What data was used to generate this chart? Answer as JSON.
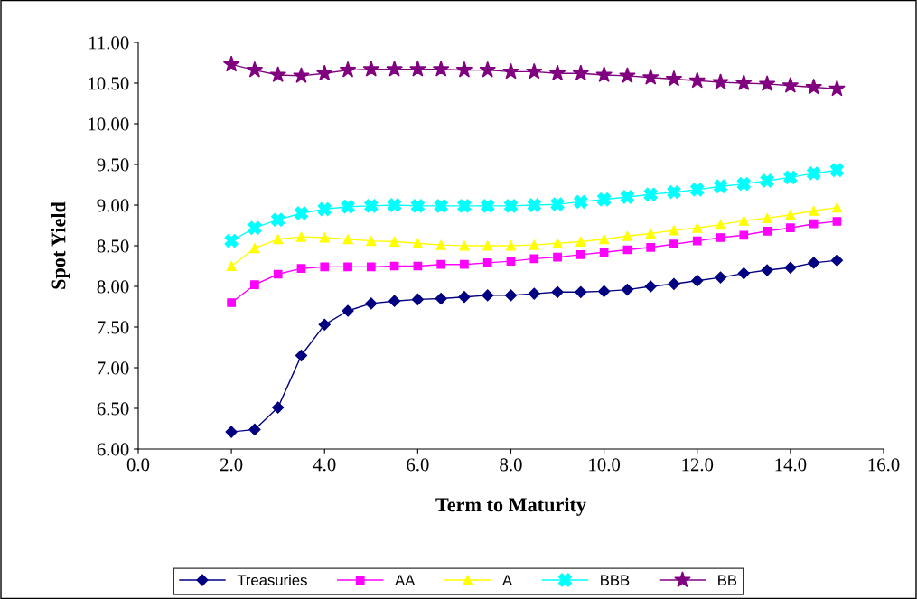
{
  "chart_data": {
    "type": "line",
    "xlabel": "Term to Maturity",
    "ylabel": "Spot Yield",
    "x": [
      2,
      2.5,
      3,
      3.5,
      4,
      4.5,
      5,
      5.5,
      6,
      6.5,
      7,
      7.5,
      8,
      8.5,
      9,
      9.5,
      10,
      10.5,
      11,
      11.5,
      12,
      12.5,
      13,
      13.5,
      14,
      14.5,
      15
    ],
    "series": [
      {
        "name": "Treasuries",
        "color": "#000080",
        "marker": "diamond",
        "values": [
          6.21,
          6.24,
          6.51,
          7.15,
          7.53,
          7.7,
          7.79,
          7.82,
          7.84,
          7.85,
          7.87,
          7.89,
          7.89,
          7.91,
          7.93,
          7.93,
          7.94,
          7.96,
          8.0,
          8.03,
          8.07,
          8.11,
          8.16,
          8.2,
          8.23,
          8.29,
          8.32
        ]
      },
      {
        "name": "AA",
        "color": "#ff00ff",
        "marker": "square",
        "values": [
          7.8,
          8.02,
          8.15,
          8.22,
          8.24,
          8.24,
          8.24,
          8.25,
          8.25,
          8.27,
          8.27,
          8.29,
          8.31,
          8.34,
          8.36,
          8.39,
          8.42,
          8.45,
          8.48,
          8.52,
          8.56,
          8.6,
          8.63,
          8.68,
          8.72,
          8.77,
          8.8
        ]
      },
      {
        "name": "A",
        "color": "#ffff00",
        "marker": "triangle",
        "values": [
          8.25,
          8.47,
          8.58,
          8.61,
          8.6,
          8.58,
          8.56,
          8.55,
          8.53,
          8.51,
          8.5,
          8.5,
          8.5,
          8.51,
          8.53,
          8.55,
          8.58,
          8.62,
          8.65,
          8.69,
          8.72,
          8.76,
          8.81,
          8.84,
          8.88,
          8.93,
          8.97
        ]
      },
      {
        "name": "BBB",
        "color": "#00ffff",
        "marker": "cross",
        "values": [
          8.56,
          8.72,
          8.82,
          8.9,
          8.95,
          8.98,
          8.99,
          9.0,
          8.99,
          8.99,
          8.99,
          8.99,
          8.99,
          9.0,
          9.01,
          9.04,
          9.07,
          9.1,
          9.13,
          9.16,
          9.19,
          9.23,
          9.26,
          9.3,
          9.34,
          9.39,
          9.43
        ]
      },
      {
        "name": "BB",
        "color": "#800080",
        "marker": "star",
        "values": [
          10.73,
          10.66,
          10.6,
          10.59,
          10.62,
          10.66,
          10.67,
          10.67,
          10.67,
          10.67,
          10.66,
          10.66,
          10.64,
          10.64,
          10.62,
          10.62,
          10.6,
          10.59,
          10.57,
          10.55,
          10.53,
          10.51,
          10.5,
          10.49,
          10.47,
          10.45,
          10.43
        ]
      }
    ],
    "xlim": [
      0,
      16
    ],
    "xticks": [
      {
        "value": 0,
        "label": "0.0"
      },
      {
        "value": 2,
        "label": "2.0"
      },
      {
        "value": 4,
        "label": "4.0"
      },
      {
        "value": 6,
        "label": "6.0"
      },
      {
        "value": 8,
        "label": "8.0"
      },
      {
        "value": 10,
        "label": "10.0"
      },
      {
        "value": 12,
        "label": "12.0"
      },
      {
        "value": 14,
        "label": "14.0"
      },
      {
        "value": 16,
        "label": "16.0"
      }
    ],
    "ylim": [
      6,
      11
    ],
    "yticks": [
      {
        "value": 6,
        "label": "6.00"
      },
      {
        "value": 6.5,
        "label": "6.50"
      },
      {
        "value": 7,
        "label": "7.00"
      },
      {
        "value": 7.5,
        "label": "7.50"
      },
      {
        "value": 8,
        "label": "8.00"
      },
      {
        "value": 8.5,
        "label": "8.50"
      },
      {
        "value": 9,
        "label": "9.00"
      },
      {
        "value": 9.5,
        "label": "9.50"
      },
      {
        "value": 10,
        "label": "10.00"
      },
      {
        "value": 10.5,
        "label": "10.50"
      },
      {
        "value": 11,
        "label": "11.00"
      }
    ],
    "grid": false,
    "legend": "bottom",
    "line_style": "solid"
  }
}
